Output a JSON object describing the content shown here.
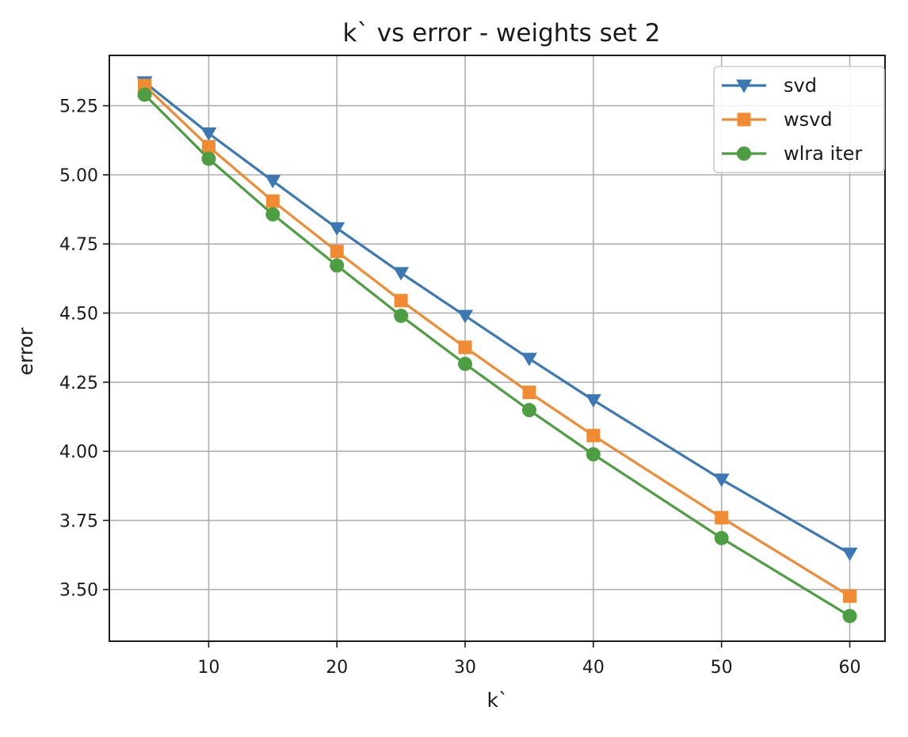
{
  "chart_data": {
    "type": "line",
    "title": "k` vs error - weights set 2",
    "xlabel": "k`",
    "ylabel": "error",
    "x": [
      5,
      10,
      15,
      20,
      25,
      30,
      35,
      40,
      50,
      60
    ],
    "xlim": [
      2.25,
      62.75
    ],
    "ylim": [
      3.313,
      5.432
    ],
    "xticks": [
      10,
      20,
      30,
      40,
      50,
      60
    ],
    "yticks": [
      3.5,
      3.75,
      4.0,
      4.25,
      4.5,
      4.75,
      5.0,
      5.25
    ],
    "xtick_labels": [
      "10",
      "20",
      "30",
      "40",
      "50",
      "60"
    ],
    "ytick_labels": [
      "3.50",
      "3.75",
      "4.00",
      "4.25",
      "4.50",
      "4.75",
      "5.00",
      "5.25"
    ],
    "grid": true,
    "legend_position": "top-right",
    "series": [
      {
        "name": "svd",
        "color": "#3b78b4",
        "marker": "triangle-down",
        "values": [
          5.335,
          5.15,
          4.978,
          4.807,
          4.645,
          4.49,
          4.335,
          4.185,
          3.898,
          3.63
        ]
      },
      {
        "name": "wsvd",
        "color": "#f08a33",
        "marker": "square",
        "values": [
          5.323,
          5.102,
          4.905,
          4.723,
          4.545,
          4.376,
          4.213,
          4.057,
          3.76,
          3.476
        ]
      },
      {
        "name": "wlra iter",
        "color": "#4d9e42",
        "marker": "circle",
        "values": [
          5.29,
          5.058,
          4.857,
          4.672,
          4.49,
          4.316,
          4.149,
          3.989,
          3.686,
          3.404
        ]
      }
    ]
  }
}
